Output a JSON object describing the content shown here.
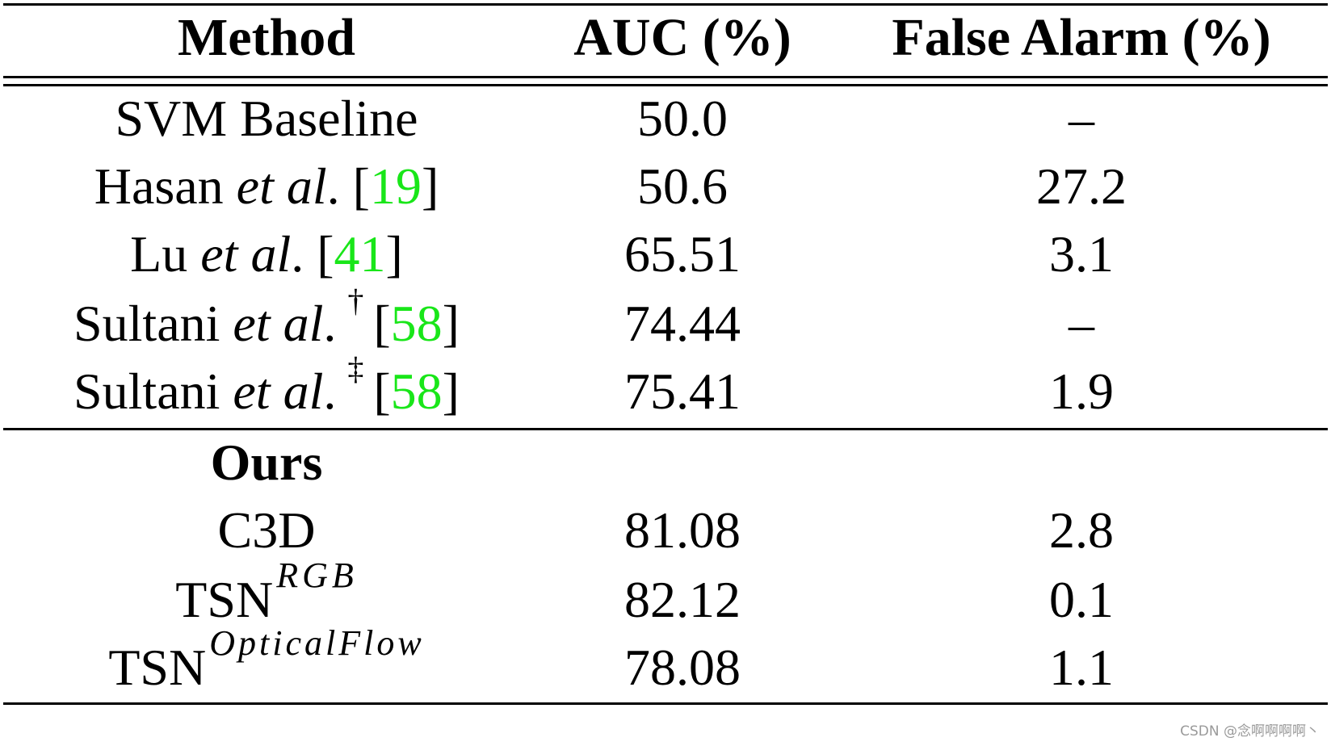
{
  "table": {
    "headers": {
      "method": "Method",
      "auc": "AUC (%)",
      "false_alarm": "False Alarm (%)"
    },
    "rows": [
      {
        "method": "SVM Baseline",
        "auc": "50.0",
        "false_alarm": "–"
      },
      {
        "method": "Hasan",
        "etal": "et al",
        "dot": ".",
        "cite": "19",
        "auc": "50.6",
        "false_alarm": "27.2"
      },
      {
        "method": "Lu",
        "etal": "et al",
        "dot": ".",
        "cite": "41",
        "auc": "65.51",
        "false_alarm": "3.1"
      },
      {
        "method": "Sultani",
        "etal": "et al",
        "dot": ".",
        "mark": "†",
        "cite": "58",
        "auc": "74.44",
        "false_alarm": "–"
      },
      {
        "method": "Sultani",
        "etal": "et al",
        "dot": ".",
        "mark": "‡",
        "cite": "58",
        "auc": "75.41",
        "false_alarm": "1.9"
      }
    ],
    "group_label": "Ours",
    "ours_rows": [
      {
        "method": "C3D",
        "auc": "81.08",
        "false_alarm": "2.8"
      },
      {
        "method": "TSN",
        "sup": "RGB",
        "auc": "82.12",
        "false_alarm": "0.1"
      },
      {
        "method": "TSN",
        "sup": "OpticalFlow",
        "auc": "78.08",
        "false_alarm": "1.1"
      }
    ],
    "citation_color": "#19e619"
  },
  "watermark": "CSDN @念啊啊啊啊丶"
}
